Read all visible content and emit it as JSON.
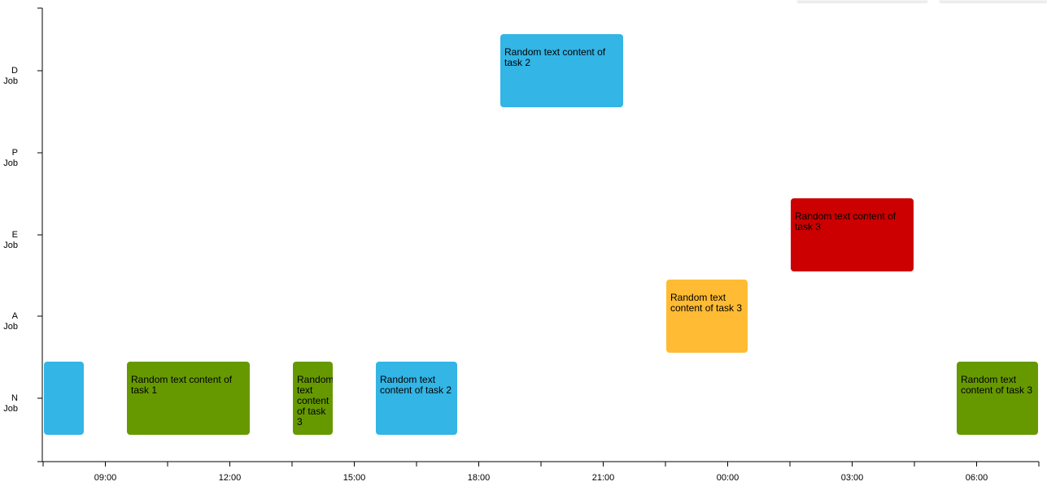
{
  "chart_data": {
    "type": "gantt",
    "x_axis": {
      "start": "07:30",
      "end": "07:30 +1d",
      "tick_step_hours": 1,
      "labeled_ticks": [
        "09:00",
        "12:00",
        "15:00",
        "18:00",
        "21:00",
        "00:00",
        "03:00",
        "06:00"
      ]
    },
    "rows": [
      {
        "id": "D",
        "label_line1": "D",
        "label_line2": "Job"
      },
      {
        "id": "P",
        "label_line1": "P",
        "label_line2": "Job"
      },
      {
        "id": "E",
        "label_line1": "E",
        "label_line2": "Job"
      },
      {
        "id": "A",
        "label_line1": "A",
        "label_line2": "Job"
      },
      {
        "id": "N",
        "label_line1": "N",
        "label_line2": "Job"
      }
    ],
    "tasks": [
      {
        "row": "N",
        "start": "07:30",
        "end": "08:30",
        "text": "",
        "color": "#33b5e5"
      },
      {
        "row": "N",
        "start": "09:30",
        "end": "12:30",
        "text": "Random text content of task 1",
        "color": "#669900"
      },
      {
        "row": "N",
        "start": "13:30",
        "end": "14:30",
        "text": "Random text content of task 3",
        "color": "#669900"
      },
      {
        "row": "N",
        "start": "15:30",
        "end": "17:30",
        "text": "Random text content of task 2",
        "color": "#33b5e5"
      },
      {
        "row": "D",
        "start": "18:30",
        "end": "21:30",
        "text": "Random text content of task 2",
        "color": "#33b5e5"
      },
      {
        "row": "A",
        "start": "22:30",
        "end": "00:30",
        "text": "Random text content of task 3",
        "color": "#ffbb33"
      },
      {
        "row": "E",
        "start": "01:30",
        "end": "04:30",
        "text": "Random text content of task 3",
        "color": "#cc0000"
      },
      {
        "row": "N",
        "start": "05:30",
        "end": "07:30",
        "text": "Random text content of task 3",
        "color": "#669900"
      }
    ]
  }
}
